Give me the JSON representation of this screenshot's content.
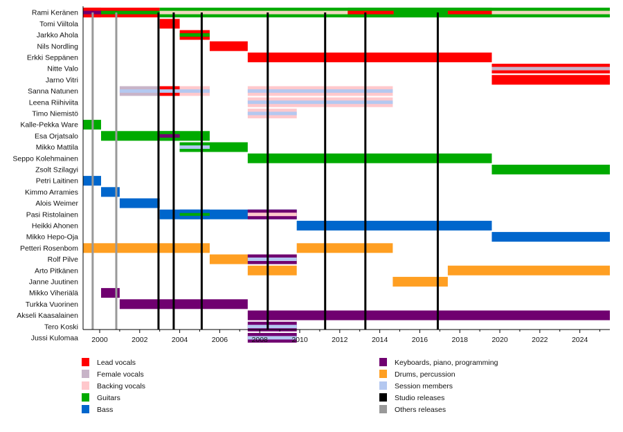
{
  "chart_data": {
    "type": "timeline",
    "title": "",
    "xlabel": "",
    "ylabel": "",
    "xlim": [
      1999.17,
      2025.5
    ],
    "x_ticks": [
      2000,
      2002,
      2004,
      2006,
      2008,
      2010,
      2012,
      2014,
      2016,
      2018,
      2020,
      2022,
      2024
    ],
    "colors": {
      "lead_vocals": "#ff0000",
      "female_vocals": "#c8b4c8",
      "backing_vocals": "#ffc8cc",
      "guitars": "#00aa00",
      "bass": "#0066cc",
      "keyboards": "#700070",
      "drums": "#ff9f22",
      "session": "#b4c8f0",
      "studio_release": "#000000",
      "other_release": "#999999",
      "backing_stripe": "#f0d8c0"
    },
    "members": [
      {
        "name": "Rami Keränen",
        "bars": [
          {
            "from": 1999.17,
            "to": 2003.0,
            "role": "lead_vocals",
            "inner": "guitars"
          },
          {
            "from": 1999.17,
            "to": 2000.07,
            "role": "lead_vocals",
            "inner": "keyboards",
            "overlay": true
          },
          {
            "from": 2003.0,
            "to": 2025.5,
            "role": "guitars",
            "inner": "backing_stripe"
          },
          {
            "from": 2012.4,
            "to": 2014.7,
            "role": "guitars",
            "inner": "lead_vocals",
            "overlay": true
          },
          {
            "from": 2014.7,
            "to": 2017.4,
            "role": "guitars",
            "inner": "guitars",
            "overlay": true
          },
          {
            "from": 2017.4,
            "to": 2019.6,
            "role": "guitars",
            "inner": "lead_vocals",
            "overlay": true
          }
        ]
      },
      {
        "name": "Tomi Viiltola",
        "bars": [
          {
            "from": 2003.0,
            "to": 2004.0,
            "role": "lead_vocals"
          }
        ]
      },
      {
        "name": "Jarkko Ahola",
        "bars": [
          {
            "from": 2004.0,
            "to": 2005.5,
            "role": "lead_vocals",
            "inner": "guitars"
          }
        ]
      },
      {
        "name": "Nils Nordling",
        "bars": [
          {
            "from": 2005.5,
            "to": 2007.4,
            "role": "lead_vocals"
          }
        ]
      },
      {
        "name": "Erkki Seppänen",
        "bars": [
          {
            "from": 2007.4,
            "to": 2019.6,
            "role": "lead_vocals"
          }
        ]
      },
      {
        "name": "Nitte Valo",
        "bars": [
          {
            "from": 2019.6,
            "to": 2025.5,
            "role": "lead_vocals",
            "inner": "female_vocals"
          }
        ]
      },
      {
        "name": "Jarno Vitri",
        "bars": [
          {
            "from": 2019.6,
            "to": 2025.5,
            "role": "lead_vocals"
          }
        ]
      },
      {
        "name": "Sanna Natunen",
        "bars": [
          {
            "from": 2001.0,
            "to": 2003.0,
            "role": "female_vocals",
            "inner": "session"
          },
          {
            "from": 2003.0,
            "to": 2004.0,
            "role": "lead_vocals",
            "inner": "session"
          },
          {
            "from": 2004.0,
            "to": 2005.5,
            "role": "backing_vocals",
            "inner": "session"
          },
          {
            "from": 2007.4,
            "to": 2014.65,
            "role": "backing_vocals",
            "inner": "session"
          }
        ]
      },
      {
        "name": "Leena Riihiviita",
        "bars": [
          {
            "from": 2007.4,
            "to": 2014.65,
            "role": "backing_vocals",
            "inner": "session"
          }
        ]
      },
      {
        "name": "Timo Niemistö",
        "bars": [
          {
            "from": 2007.4,
            "to": 2009.85,
            "role": "backing_vocals",
            "inner": "session"
          }
        ]
      },
      {
        "name": "Kalle-Pekka Ware",
        "bars": [
          {
            "from": 1999.17,
            "to": 2000.07,
            "role": "guitars"
          }
        ]
      },
      {
        "name": "Esa Orjatsalo",
        "bars": [
          {
            "from": 2000.07,
            "to": 2005.5,
            "role": "guitars"
          },
          {
            "from": 2003.0,
            "to": 2004.0,
            "role": "guitars",
            "inner": "keyboards",
            "overlay": true
          }
        ]
      },
      {
        "name": "Mikko Mattila",
        "bars": [
          {
            "from": 2004.0,
            "to": 2007.4,
            "role": "guitars"
          },
          {
            "from": 2004.0,
            "to": 2005.5,
            "role": "guitars",
            "inner": "session",
            "overlay": true
          }
        ]
      },
      {
        "name": "Seppo Kolehmainen",
        "bars": [
          {
            "from": 2007.4,
            "to": 2019.6,
            "role": "guitars"
          }
        ]
      },
      {
        "name": "Zsolt Szilagyi",
        "bars": [
          {
            "from": 2019.6,
            "to": 2025.5,
            "role": "guitars"
          }
        ]
      },
      {
        "name": "Petri Laitinen",
        "bars": [
          {
            "from": 1999.17,
            "to": 2000.07,
            "role": "bass"
          }
        ]
      },
      {
        "name": "Kimmo Arramies",
        "bars": [
          {
            "from": 2000.07,
            "to": 2001.0,
            "role": "bass"
          }
        ]
      },
      {
        "name": "Alois Weimer",
        "bars": [
          {
            "from": 2001.0,
            "to": 2003.0,
            "role": "bass"
          }
        ]
      },
      {
        "name": "Pasi Ristolainen",
        "bars": [
          {
            "from": 2003.0,
            "to": 2009.85,
            "role": "bass"
          },
          {
            "from": 2004.0,
            "to": 2005.5,
            "role": "bass",
            "inner": "guitars",
            "overlay": true
          },
          {
            "from": 2007.4,
            "to": 2009.85,
            "role": "keyboards",
            "inner": "backing_vocals",
            "overlay": true
          }
        ]
      },
      {
        "name": "Heikki Ahonen",
        "bars": [
          {
            "from": 2009.85,
            "to": 2019.6,
            "role": "bass"
          }
        ]
      },
      {
        "name": "Mikko Hepo-Oja",
        "bars": [
          {
            "from": 2019.6,
            "to": 2025.5,
            "role": "bass"
          }
        ]
      },
      {
        "name": "Petteri Rosenbom",
        "bars": [
          {
            "from": 1999.17,
            "to": 2005.5,
            "role": "drums"
          },
          {
            "from": 2009.85,
            "to": 2014.65,
            "role": "drums"
          }
        ]
      },
      {
        "name": "Rolf Pilve",
        "bars": [
          {
            "from": 2005.5,
            "to": 2009.85,
            "role": "drums"
          },
          {
            "from": 2007.4,
            "to": 2009.85,
            "role": "keyboards",
            "inner": "session",
            "overlay": true
          }
        ]
      },
      {
        "name": "Arto Pitkänen",
        "bars": [
          {
            "from": 2007.4,
            "to": 2009.85,
            "role": "drums"
          },
          {
            "from": 2017.4,
            "to": 2025.5,
            "role": "drums"
          }
        ]
      },
      {
        "name": "Janne Juutinen",
        "bars": [
          {
            "from": 2014.65,
            "to": 2017.4,
            "role": "drums"
          }
        ]
      },
      {
        "name": "Mikko Viheriälä",
        "bars": [
          {
            "from": 2000.07,
            "to": 2001.0,
            "role": "keyboards"
          }
        ]
      },
      {
        "name": "Turkka Vuorinen",
        "bars": [
          {
            "from": 2001.0,
            "to": 2007.4,
            "role": "keyboards"
          }
        ]
      },
      {
        "name": "Akseli Kaasalainen",
        "bars": [
          {
            "from": 2007.4,
            "to": 2025.5,
            "role": "keyboards"
          }
        ]
      },
      {
        "name": "Tero Koski",
        "bars": [
          {
            "from": 2007.4,
            "to": 2009.85,
            "role": "keyboards",
            "inner": "session"
          }
        ]
      },
      {
        "name": "Jussi Kulomaa",
        "bars": [
          {
            "from": 2007.4,
            "to": 2009.85,
            "role": "keyboards",
            "inner": "session"
          }
        ]
      }
    ],
    "studio_releases": [
      2002.94,
      2003.7,
      2005.1,
      2008.4,
      2011.27,
      2013.28,
      2016.9
    ],
    "other_releases": [
      1999.65,
      2000.83
    ],
    "legend": {
      "placement": "bottom",
      "left": [
        {
          "label": "Lead vocals",
          "color_key": "lead_vocals"
        },
        {
          "label": "Female vocals",
          "color_key": "female_vocals"
        },
        {
          "label": "Backing vocals",
          "color_key": "backing_vocals"
        },
        {
          "label": "Guitars",
          "color_key": "guitars"
        },
        {
          "label": "Bass",
          "color_key": "bass"
        }
      ],
      "right": [
        {
          "label": "Keyboards, piano, programming",
          "color_key": "keyboards"
        },
        {
          "label": "Drums, percussion",
          "color_key": "drums"
        },
        {
          "label": "Session members",
          "color_key": "session"
        },
        {
          "label": "Studio releases",
          "color_key": "studio_release"
        },
        {
          "label": "Others releases",
          "color_key": "other_release"
        }
      ]
    }
  }
}
